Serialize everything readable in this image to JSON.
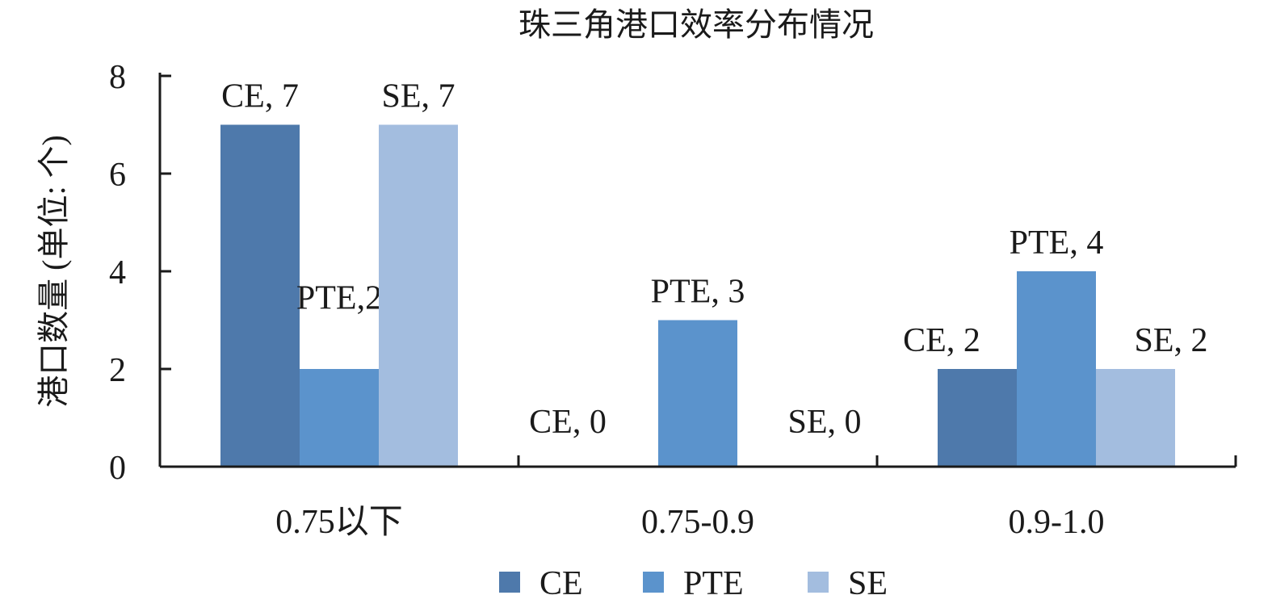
{
  "chart_data": {
    "type": "bar",
    "title": "珠三角港口效率分布情况",
    "xlabel": "",
    "ylabel": "港口数量 (单位: 个)",
    "categories": [
      "0.75以下",
      "0.75-0.9",
      "0.9-1.0"
    ],
    "series": [
      {
        "name": "CE",
        "values": [
          7,
          0,
          2
        ],
        "color": "#4e79ab"
      },
      {
        "name": "PTE",
        "values": [
          2,
          3,
          4
        ],
        "color": "#5b93cc"
      },
      {
        "name": "SE",
        "values": [
          7,
          0,
          2
        ],
        "color": "#a3bddf"
      }
    ],
    "data_labels": [
      [
        "CE, 7",
        "CE, 0",
        "CE, 2"
      ],
      [
        "PTE,2",
        "PTE, 3",
        "PTE, 4"
      ],
      [
        "SE, 7",
        "SE, 0",
        "SE, 2"
      ]
    ],
    "ylim": [
      0,
      8
    ],
    "yticks": [
      0,
      2,
      4,
      6,
      8
    ],
    "grid": false,
    "legend_position": "bottom"
  }
}
